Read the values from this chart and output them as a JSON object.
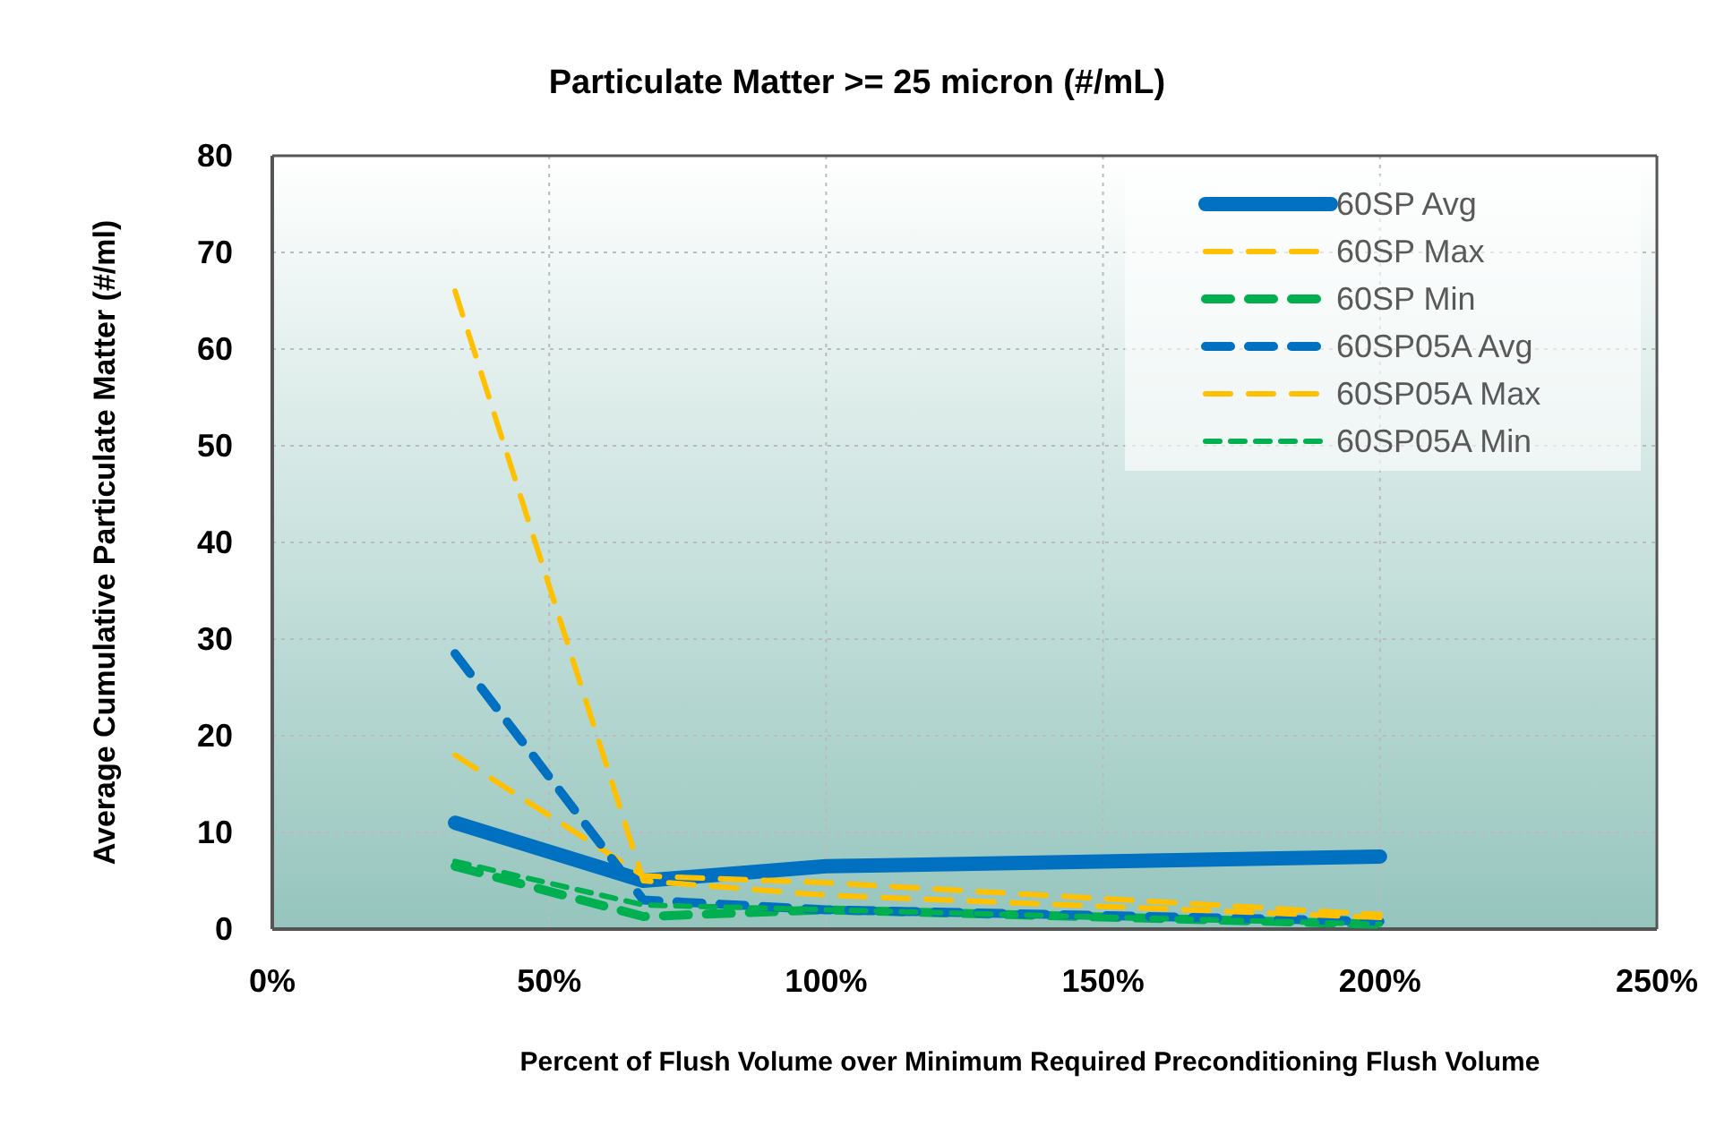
{
  "chart_data": {
    "type": "line",
    "title": "Particulate Matter >= 25 micron (#/mL)",
    "xlabel": "Percent of Flush Volume over Minimum Required Preconditioning Flush Volume",
    "ylabel": "Average Cumulative Particulate Matter (#/ml)",
    "x": [
      33,
      67,
      100,
      200
    ],
    "xlim": [
      0,
      250
    ],
    "xticks": [
      {
        "value": 0,
        "label": "0%"
      },
      {
        "value": 50,
        "label": "50%"
      },
      {
        "value": 100,
        "label": "100%"
      },
      {
        "value": 150,
        "label": "150%"
      },
      {
        "value": 200,
        "label": "200%"
      },
      {
        "value": 250,
        "label": "250%"
      }
    ],
    "ylim": [
      0,
      80
    ],
    "yticks": [
      0,
      10,
      20,
      30,
      40,
      50,
      60,
      70,
      80
    ],
    "grid": true,
    "legend": "top right",
    "marker": "none",
    "series": [
      {
        "name": "60SP Avg",
        "color": "#0070c0",
        "line_style": "solid",
        "values": [
          11,
          5,
          6.5,
          7.5
        ]
      },
      {
        "name": "60SP Max",
        "color": "#ffc000",
        "line_style": "dashed",
        "values": [
          18,
          5.5,
          4.8,
          1.5
        ]
      },
      {
        "name": "60SP Min",
        "color": "#00b050",
        "line_style": "dashed",
        "values": [
          6.5,
          1.3,
          2,
          0.5
        ]
      },
      {
        "name": "60SP05A Avg",
        "color": "#0070c0",
        "line_style": "dashed",
        "values": [
          28.5,
          3,
          2,
          0.8
        ]
      },
      {
        "name": "60SP05A Max",
        "color": "#ffc000",
        "line_style": "dashed",
        "values": [
          66,
          5,
          3.5,
          1.2
        ]
      },
      {
        "name": "60SP05A Min",
        "color": "#00b050",
        "line_style": "dotted",
        "values": [
          7,
          2.5,
          2,
          0.5
        ]
      }
    ]
  }
}
